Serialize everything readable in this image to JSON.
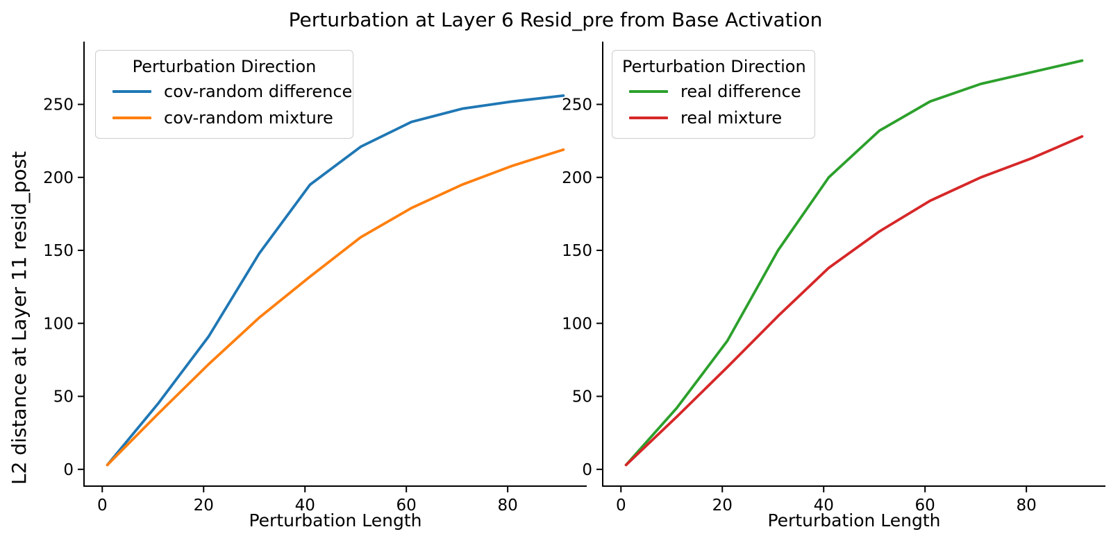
{
  "figure": {
    "title": "Perturbation at Layer 6 Resid_pre from Base Activation",
    "ylabel": "L2 distance at Layer 11 resid_post"
  },
  "chart_data": [
    {
      "type": "line",
      "panel": "left",
      "xlabel": "Perturbation Length",
      "ylabel": "L2 distance at Layer 11 resid_post",
      "legend_title": "Perturbation Direction",
      "legend_position": "upper left",
      "grid": false,
      "x": [
        1,
        11,
        21,
        31,
        41,
        51,
        61,
        71,
        81,
        91
      ],
      "series": [
        {
          "name": "cov-random difference",
          "color": "#1f77b4",
          "values": [
            3,
            45,
            91,
            148,
            195,
            221,
            238,
            247,
            252,
            256
          ]
        },
        {
          "name": "cov-random mixture",
          "color": "#ff7f0e",
          "values": [
            3,
            38,
            72,
            104,
            132,
            159,
            179,
            195,
            208,
            219
          ]
        }
      ],
      "xticks": [
        0,
        20,
        40,
        60,
        80
      ],
      "yticks": [
        0,
        50,
        100,
        150,
        200,
        250
      ],
      "xlim": [
        -3.6,
        95.6
      ],
      "ylim": [
        -11.5,
        293
      ]
    },
    {
      "type": "line",
      "panel": "right",
      "xlabel": "Perturbation Length",
      "ylabel": "L2 distance at Layer 11 resid_post",
      "legend_title": "Perturbation Direction",
      "legend_position": "upper left",
      "grid": false,
      "x": [
        1,
        11,
        21,
        31,
        41,
        51,
        61,
        71,
        81,
        91
      ],
      "series": [
        {
          "name": "real difference",
          "color": "#2ca02c",
          "values": [
            3,
            42,
            88,
            150,
            200,
            232,
            252,
            264,
            272,
            280
          ]
        },
        {
          "name": "real mixture",
          "color": "#d62728",
          "values": [
            3,
            36,
            70,
            105,
            138,
            163,
            184,
            200,
            213,
            228
          ]
        }
      ],
      "xticks": [
        0,
        20,
        40,
        60,
        80
      ],
      "yticks": [
        0,
        50,
        100,
        150,
        200,
        250
      ],
      "xlim": [
        -3.6,
        95.6
      ],
      "ylim": [
        -11.5,
        293
      ]
    }
  ],
  "style": {
    "axis_color": "#000000",
    "background": "#ffffff",
    "legend_border": "#cccccc"
  }
}
